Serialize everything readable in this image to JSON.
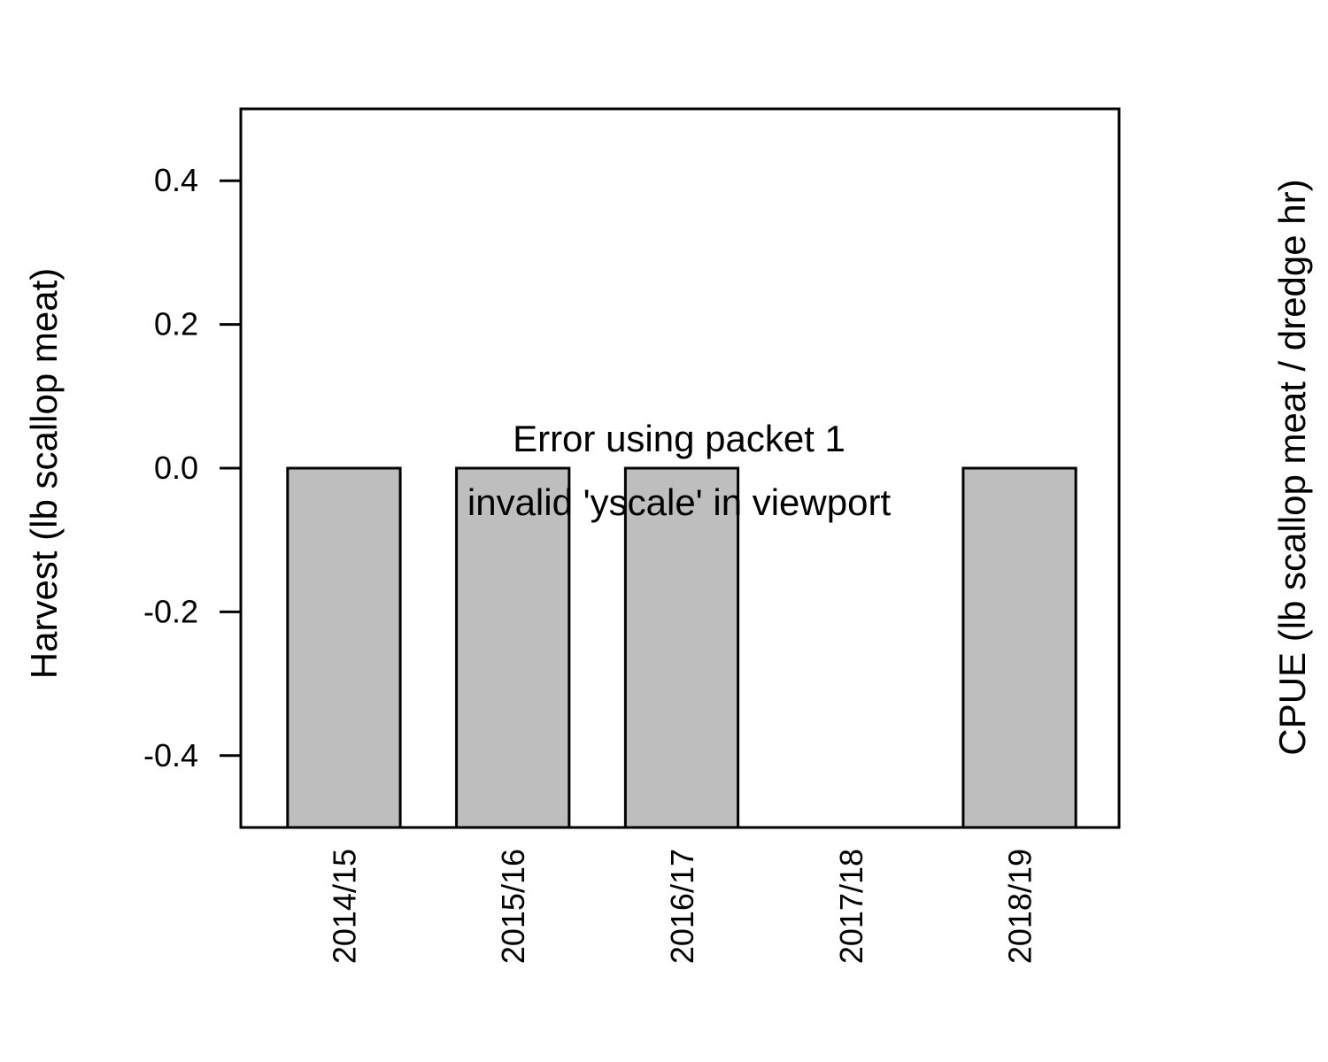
{
  "chart_data": {
    "type": "bar",
    "categories": [
      "2014/15",
      "2015/16",
      "2016/17",
      "2017/18",
      "2018/19"
    ],
    "series": [
      {
        "values": [
          0.0,
          0.0,
          0.0,
          null,
          0.0
        ]
      }
    ],
    "ylabel": "Harvest (lb scallop meat)",
    "ylabel_right": "CPUE (lb scallop meat / dredge hr)",
    "ylim": [
      -0.5,
      0.5
    ],
    "yticks": [
      -0.4,
      -0.2,
      0.0,
      0.2,
      0.4
    ],
    "ytick_labels": [
      "-0.4",
      "-0.2",
      "0.0",
      "0.2",
      "0.4"
    ],
    "bar_fill": "#bebebe",
    "bar_stroke": "#000000",
    "grid": false,
    "annotation_lines": [
      "Error using packet 1",
      "invalid 'yscale' in viewport"
    ]
  }
}
